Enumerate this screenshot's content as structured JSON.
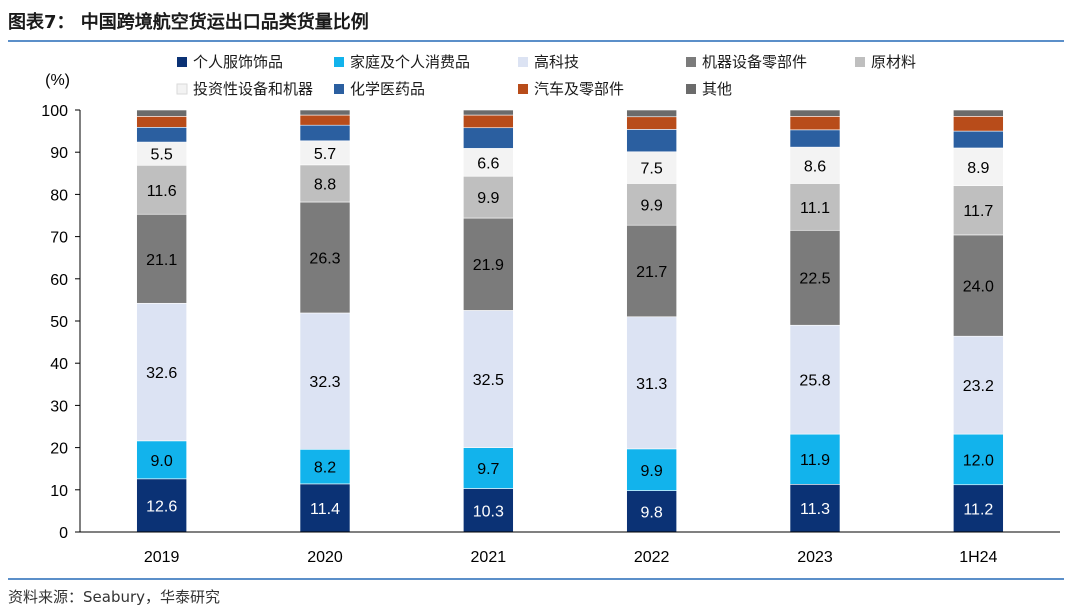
{
  "title": "图表7： 中国跨境航空货运出口品类货量比例",
  "source": "资料来源：Seabury，华泰研究",
  "colors": {
    "title_rule": "#5b8fc9",
    "axis": "#000000"
  },
  "chart_data": {
    "type": "bar",
    "stacked": true,
    "title": "中国跨境航空货运出口品类货量比例",
    "ylabel": "(%)",
    "xlabel": "",
    "ylim": [
      0,
      100
    ],
    "yticks": [
      0,
      10,
      20,
      30,
      40,
      50,
      60,
      70,
      80,
      90,
      100
    ],
    "categories": [
      "2019",
      "2020",
      "2021",
      "2022",
      "2023",
      "1H24"
    ],
    "legend_position": "top",
    "series": [
      {
        "name": "个人服饰饰品",
        "color": "#0b3275",
        "label_color": "#ffffff",
        "values": [
          12.6,
          11.4,
          10.3,
          9.8,
          11.3,
          11.2
        ],
        "labels": [
          "12.6",
          "11.4",
          "10.3",
          "9.8",
          "11.3",
          "11.2"
        ]
      },
      {
        "name": "家庭及个人消费品",
        "color": "#12b3ec",
        "label_color": "#000000",
        "values": [
          9.0,
          8.2,
          9.7,
          9.9,
          11.9,
          12.0
        ],
        "labels": [
          "9.0",
          "8.2",
          "9.7",
          "9.9",
          "11.9",
          "12.0"
        ]
      },
      {
        "name": "高科技",
        "color": "#dce3f3",
        "label_color": "#000000",
        "values": [
          32.6,
          32.3,
          32.5,
          31.3,
          25.8,
          23.2
        ],
        "labels": [
          "32.6",
          "32.3",
          "32.5",
          "31.3",
          "25.8",
          "23.2"
        ]
      },
      {
        "name": "机器设备零部件",
        "color": "#7b7b7b",
        "label_color": "#000000",
        "values": [
          21.1,
          26.3,
          21.9,
          21.7,
          22.5,
          24.0
        ],
        "labels": [
          "21.1",
          "26.3",
          "21.9",
          "21.7",
          "22.5",
          "24.0"
        ]
      },
      {
        "name": "原材料",
        "color": "#bfbfbf",
        "label_color": "#000000",
        "values": [
          11.6,
          8.8,
          9.9,
          9.9,
          11.1,
          11.7
        ],
        "labels": [
          "11.6",
          "8.8",
          "9.9",
          "9.9",
          "11.1",
          "11.7"
        ]
      },
      {
        "name": "投资性设备和机器",
        "color": "#f3f3f3",
        "label_color": "#000000",
        "values": [
          5.5,
          5.7,
          6.6,
          7.5,
          8.6,
          8.9
        ],
        "labels": [
          "5.5",
          "5.7",
          "6.6",
          "7.5",
          "8.6",
          "8.9"
        ]
      },
      {
        "name": "化学医药品",
        "color": "#2b5fa0",
        "label_color": "#ffffff",
        "values": [
          3.5,
          3.7,
          4.9,
          5.3,
          4.1,
          4.0
        ],
        "labels": null
      },
      {
        "name": "汽车及零部件",
        "color": "#b84c1a",
        "label_color": "#ffffff",
        "values": [
          2.6,
          2.4,
          3.0,
          3.0,
          3.2,
          3.5
        ],
        "labels": null
      },
      {
        "name": "其他",
        "color": "#6b6b6b",
        "label_color": "#ffffff",
        "values": [
          1.5,
          1.2,
          1.2,
          1.6,
          1.5,
          1.5
        ],
        "labels": null
      }
    ]
  }
}
